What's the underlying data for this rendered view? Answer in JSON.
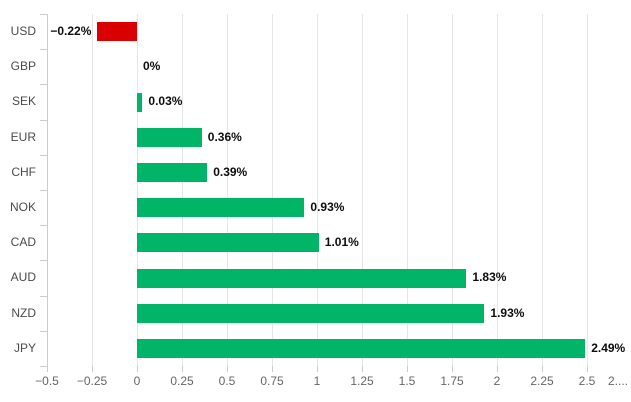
{
  "chart_data": {
    "type": "bar",
    "orientation": "horizontal",
    "title": "",
    "xlabel": "",
    "ylabel": "",
    "grid": true,
    "legend": false,
    "xlim": [
      -0.5,
      2.95
    ],
    "categories": [
      "USD",
      "GBP",
      "SEK",
      "EUR",
      "CHF",
      "NOK",
      "CAD",
      "AUD",
      "NZD",
      "JPY"
    ],
    "values": [
      -0.22,
      0,
      0.03,
      0.36,
      0.39,
      0.93,
      1.01,
      1.83,
      1.93,
      2.49
    ],
    "value_labels": [
      "−0.22%",
      "0%",
      "0.03%",
      "0.36%",
      "0.39%",
      "0.93%",
      "1.01%",
      "1.83%",
      "1.93%",
      "2.49%"
    ],
    "x_ticks": [
      {
        "value": -0.5,
        "label": "−0.5"
      },
      {
        "value": -0.25,
        "label": "−0.25"
      },
      {
        "value": 0,
        "label": "0"
      },
      {
        "value": 0.25,
        "label": "0.25"
      },
      {
        "value": 0.5,
        "label": "0.5"
      },
      {
        "value": 0.75,
        "label": "0.75"
      },
      {
        "value": 1,
        "label": "1"
      },
      {
        "value": 1.25,
        "label": "1.25"
      },
      {
        "value": 1.5,
        "label": "1.5"
      },
      {
        "value": 1.75,
        "label": "1.75"
      },
      {
        "value": 2,
        "label": "2"
      },
      {
        "value": 2.25,
        "label": "2.25"
      },
      {
        "value": 2.5,
        "label": "2.5"
      },
      {
        "value": 2.75,
        "label": "2...."
      }
    ],
    "colors": {
      "positive": "#00b468",
      "negative": "#d90000",
      "gridline": "#e6e6e6",
      "axis": "#cccccc",
      "tick_label": "#666666",
      "category_label": "#4a4a4a",
      "value_label": "#0d0d0d",
      "background": "#ffffff"
    }
  }
}
